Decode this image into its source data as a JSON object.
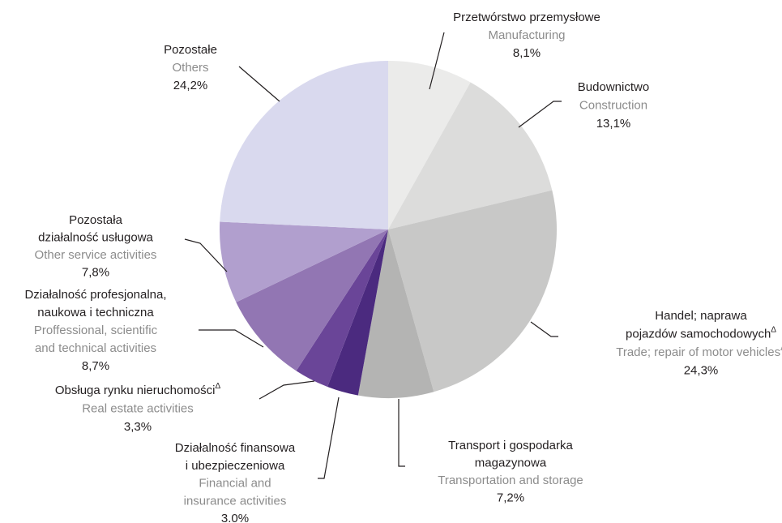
{
  "chart_data": {
    "type": "pie",
    "categories": [
      [
        "Przetwórstwo przemysłowe"
      ],
      [
        "Budownictwo"
      ],
      [
        "Handel; naprawa",
        "pojazdów samochodowychΔ"
      ],
      [
        "Transport i gospodarka",
        "magazynowa"
      ],
      [
        "Działalność finansowa",
        "i ubezpieczeniowa"
      ],
      [
        "Obsługa rynku nieruchomościΔ"
      ],
      [
        "Działalność profesjonalna,",
        "naukowa i techniczna"
      ],
      [
        "Pozostała",
        "działalność usługowa"
      ],
      [
        "Pozostałe"
      ]
    ],
    "categories_en": [
      [
        "Manufacturing"
      ],
      [
        "Construction"
      ],
      [
        "Trade; repair of motor vehiclesΔ"
      ],
      [
        "Transportation and storage"
      ],
      [
        "Financial and",
        "insurance activities"
      ],
      [
        "Real estate activities"
      ],
      [
        "Proffessional, scientific",
        "and technical activities"
      ],
      [
        "Other service activities"
      ],
      [
        "Others"
      ]
    ],
    "values": [
      8.1,
      13.1,
      24.3,
      7.2,
      3.0,
      3.3,
      8.7,
      7.8,
      24.2
    ],
    "value_labels": [
      "8,1%",
      "13,1%",
      "24,3%",
      "7,2%",
      "3.0%",
      "3,3%",
      "8,7%",
      "7,8%",
      "24,2%"
    ],
    "colors": [
      "#ebebea",
      "#dcdcdb",
      "#c8c8c7",
      "#b4b4b3",
      "#4b2a7f",
      "#6a4598",
      "#9276b3",
      "#b19fce",
      "#d9d9ee"
    ]
  }
}
